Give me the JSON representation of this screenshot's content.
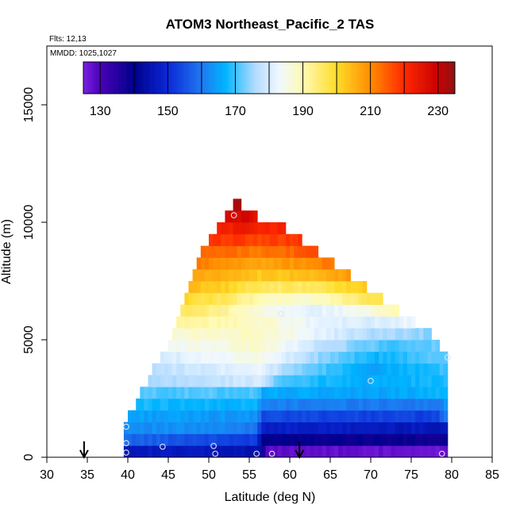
{
  "chart_data": {
    "type": "heatmap",
    "title": "ATOM3 Northeast_Pacific_2 TAS",
    "flights_label": "Flts: 12,13",
    "mmdd_label": "MMDD: 1025,1027",
    "xlabel": "Latitude (deg N)",
    "ylabel": "Altitude (m)",
    "xlim": [
      30,
      85
    ],
    "ylim": [
      0,
      17500
    ],
    "x_ticks": [
      30,
      35,
      40,
      45,
      50,
      55,
      60,
      65,
      70,
      75,
      80,
      85
    ],
    "y_ticks": [
      0,
      5000,
      10000,
      15000
    ],
    "colorbar": {
      "range": [
        125,
        235
      ],
      "boundaries": [
        125,
        130,
        140,
        150,
        160,
        170,
        180,
        190,
        200,
        210,
        220,
        230,
        235
      ],
      "tick_labels": [
        130,
        150,
        170,
        190,
        210,
        230
      ],
      "stops": [
        {
          "v": 125,
          "c": "#7a1fe0"
        },
        {
          "v": 130,
          "c": "#4a00b8"
        },
        {
          "v": 140,
          "c": "#00008a"
        },
        {
          "v": 150,
          "c": "#0a28d8"
        },
        {
          "v": 160,
          "c": "#1e78f0"
        },
        {
          "v": 167,
          "c": "#00b4ff"
        },
        {
          "v": 176,
          "c": "#b4dcff"
        },
        {
          "v": 183,
          "c": "#f0f8ff"
        },
        {
          "v": 190,
          "c": "#fffab4"
        },
        {
          "v": 200,
          "c": "#ffdc28"
        },
        {
          "v": 210,
          "c": "#ff8c00"
        },
        {
          "v": 220,
          "c": "#ff2800"
        },
        {
          "v": 230,
          "c": "#c80000"
        },
        {
          "v": 235,
          "c": "#8c1414"
        }
      ]
    },
    "grid": {
      "lat_start": 39.5,
      "lat_end": 79.5,
      "lat_step": 0.5,
      "alt_step": 500
    },
    "layers": [
      {
        "alt": 0,
        "lat_min": 39.5,
        "lat_max": 79.0,
        "values": [
          [
            39.5,
            147
          ],
          [
            50,
            146
          ],
          [
            56,
            144
          ],
          [
            57,
            128
          ],
          [
            79,
            127
          ]
        ]
      },
      {
        "alt": 500,
        "lat_min": 39.5,
        "lat_max": 79.0,
        "values": [
          [
            39.5,
            158
          ],
          [
            48,
            155
          ],
          [
            55.5,
            152
          ],
          [
            56.5,
            140
          ],
          [
            79,
            138
          ]
        ]
      },
      {
        "alt": 1000,
        "lat_min": 39.5,
        "lat_max": 79.0,
        "values": [
          [
            39.5,
            163
          ],
          [
            50,
            162
          ],
          [
            55.5,
            160
          ],
          [
            56.5,
            148
          ],
          [
            79,
            146
          ]
        ]
      },
      {
        "alt": 1500,
        "lat_min": 40.0,
        "lat_max": 79.0,
        "values": [
          [
            40,
            165
          ],
          [
            50,
            164
          ],
          [
            55.5,
            163
          ],
          [
            56.5,
            154
          ],
          [
            78,
            153
          ],
          [
            79,
            160
          ]
        ]
      },
      {
        "alt": 2000,
        "lat_min": 41.0,
        "lat_max": 79.0,
        "values": [
          [
            41,
            168
          ],
          [
            50,
            167
          ],
          [
            55.5,
            167
          ],
          [
            56.5,
            161
          ],
          [
            78,
            160
          ],
          [
            79,
            163
          ]
        ]
      },
      {
        "alt": 2500,
        "lat_min": 41.5,
        "lat_max": 79.0,
        "values": [
          [
            41.5,
            171
          ],
          [
            50,
            171
          ],
          [
            55.5,
            171
          ],
          [
            56.5,
            166
          ],
          [
            70,
            165
          ],
          [
            79,
            167
          ]
        ]
      },
      {
        "alt": 3000,
        "lat_min": 42.5,
        "lat_max": 79.0,
        "values": [
          [
            42.5,
            175
          ],
          [
            52,
            178
          ],
          [
            56,
            180
          ],
          [
            59,
            170
          ],
          [
            70,
            166
          ],
          [
            79,
            168
          ]
        ]
      },
      {
        "alt": 3500,
        "lat_min": 43.0,
        "lat_max": 79.0,
        "values": [
          [
            43,
            177
          ],
          [
            52,
            181
          ],
          [
            56,
            183
          ],
          [
            60,
            174
          ],
          [
            70,
            165
          ],
          [
            79,
            170
          ]
        ]
      },
      {
        "alt": 4000,
        "lat_min": 44.0,
        "lat_max": 79.0,
        "values": [
          [
            44,
            180
          ],
          [
            52,
            184
          ],
          [
            56,
            186
          ],
          [
            62,
            176
          ],
          [
            70,
            167
          ],
          [
            79,
            172
          ]
        ]
      },
      {
        "alt": 4500,
        "lat_min": 45.0,
        "lat_max": 78.0,
        "values": [
          [
            45,
            184
          ],
          [
            52,
            186
          ],
          [
            56,
            188
          ],
          [
            63,
            178
          ],
          [
            72,
            170
          ],
          [
            78,
            172
          ]
        ]
      },
      {
        "alt": 5000,
        "lat_min": 45.5,
        "lat_max": 77.0,
        "values": [
          [
            45.5,
            187
          ],
          [
            52,
            188
          ],
          [
            56,
            189
          ],
          [
            64,
            181
          ],
          [
            70,
            176
          ],
          [
            77,
            174
          ]
        ]
      },
      {
        "alt": 5500,
        "lat_min": 46.0,
        "lat_max": 75.0,
        "values": [
          [
            46,
            191
          ],
          [
            52,
            190
          ],
          [
            56,
            188
          ],
          [
            63,
            182
          ],
          [
            70,
            180
          ],
          [
            75,
            183
          ]
        ]
      },
      {
        "alt": 6000,
        "lat_min": 46.5,
        "lat_max": 73.0,
        "values": [
          [
            46.5,
            196
          ],
          [
            52,
            192
          ],
          [
            56,
            186
          ],
          [
            62,
            181
          ],
          [
            68,
            184
          ],
          [
            73,
            190
          ]
        ]
      },
      {
        "alt": 6500,
        "lat_min": 47.0,
        "lat_max": 71.0,
        "values": [
          [
            47,
            200
          ],
          [
            52,
            196
          ],
          [
            56,
            190
          ],
          [
            62,
            187
          ],
          [
            68,
            194
          ],
          [
            71,
            198
          ]
        ]
      },
      {
        "alt": 7000,
        "lat_min": 47.5,
        "lat_max": 69.0,
        "values": [
          [
            47.5,
            204
          ],
          [
            52,
            201
          ],
          [
            56,
            196
          ],
          [
            62,
            196
          ],
          [
            69,
            202
          ]
        ]
      },
      {
        "alt": 7500,
        "lat_min": 48.0,
        "lat_max": 67.0,
        "values": [
          [
            48,
            207
          ],
          [
            52,
            205
          ],
          [
            56,
            202
          ],
          [
            62,
            204
          ],
          [
            67,
            208
          ]
        ]
      },
      {
        "alt": 8000,
        "lat_min": 48.5,
        "lat_max": 65.0,
        "values": [
          [
            48.5,
            211
          ],
          [
            52,
            209
          ],
          [
            56,
            207
          ],
          [
            61,
            209
          ],
          [
            65,
            212
          ]
        ]
      },
      {
        "alt": 8500,
        "lat_min": 49.0,
        "lat_max": 63.0,
        "values": [
          [
            49,
            214
          ],
          [
            52,
            213
          ],
          [
            56,
            212
          ],
          [
            60,
            214
          ],
          [
            63,
            216
          ]
        ]
      },
      {
        "alt": 9000,
        "lat_min": 50.0,
        "lat_max": 61.0,
        "values": [
          [
            50,
            218
          ],
          [
            53,
            219
          ],
          [
            56,
            217
          ],
          [
            61,
            219
          ]
        ]
      },
      {
        "alt": 9500,
        "lat_min": 51.0,
        "lat_max": 59.0,
        "values": [
          [
            51,
            222
          ],
          [
            54,
            223
          ],
          [
            56,
            221
          ],
          [
            59,
            222
          ]
        ]
      },
      {
        "alt": 10000,
        "lat_min": 52.0,
        "lat_max": 55.5,
        "values": [
          [
            52,
            227
          ],
          [
            54,
            228
          ],
          [
            55.5,
            226
          ]
        ]
      },
      {
        "alt": 10500,
        "lat_min": 53.0,
        "lat_max": 53.5,
        "values": [
          [
            53,
            232
          ],
          [
            53.5,
            232
          ]
        ]
      }
    ],
    "profile_points": [
      [
        39.8,
        200
      ],
      [
        39.8,
        600
      ],
      [
        39.8,
        1300
      ],
      [
        44.3,
        450
      ],
      [
        50.6,
        480
      ],
      [
        50.8,
        150
      ],
      [
        55.9,
        150
      ],
      [
        57.8,
        150
      ],
      [
        55.6,
        3400
      ],
      [
        58.9,
        6100
      ],
      [
        51.8,
        6200
      ],
      [
        53.1,
        10300
      ],
      [
        70.0,
        3250
      ],
      [
        78.8,
        150
      ],
      [
        79.5,
        4250
      ]
    ],
    "arrows_lat": [
      34.6,
      61.2
    ],
    "colors": {
      "point_outline": "#e6e6e6",
      "frame": "#000000"
    }
  }
}
